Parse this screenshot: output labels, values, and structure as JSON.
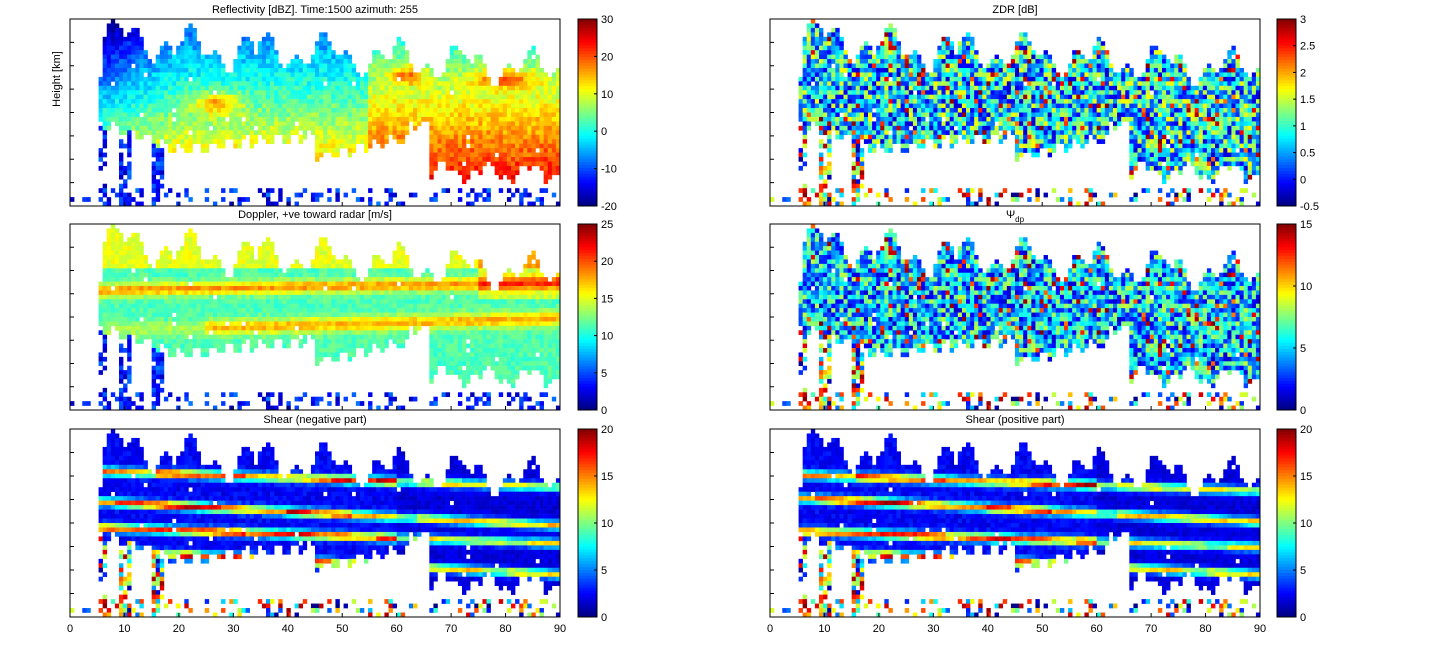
{
  "chart_data": [
    {
      "type": "heatmap",
      "title": "Reflectivity [dBZ]. Time:1500 azimuth: 255",
      "ylabel": "Height [km]",
      "xlim": [
        0,
        90
      ],
      "x_ticks": [],
      "colorbar": {
        "range": [
          -20,
          30
        ],
        "ticks": [
          "-20",
          "-10",
          "0",
          "10",
          "20",
          "30"
        ]
      },
      "field": {
        "kind": "refl",
        "hotspots": [
          [
            27,
            0.45,
            4,
            0.06,
            28
          ],
          [
            62,
            0.3,
            3,
            0.05,
            20
          ],
          [
            80,
            0.32,
            6,
            0.05,
            18
          ]
        ]
      }
    },
    {
      "type": "heatmap",
      "title": "ZDR [dB]",
      "xlim": [
        0,
        90
      ],
      "x_ticks": [],
      "colorbar": {
        "range": [
          -0.5,
          3
        ],
        "ticks": [
          "-0.5",
          "0",
          "0.5",
          "1",
          "1.5",
          "2",
          "2.5",
          "3"
        ]
      },
      "field": {
        "kind": "noise",
        "base": 0.35,
        "spread": 0.28
      }
    },
    {
      "type": "heatmap",
      "title": "Doppler, +ve toward radar [m/s]",
      "xlim": [
        0,
        90
      ],
      "x_ticks": [],
      "colorbar": {
        "range": [
          0,
          25
        ],
        "ticks": [
          "0",
          "5",
          "10",
          "15",
          "20",
          "25"
        ]
      },
      "field": {
        "kind": "doppler"
      }
    },
    {
      "type": "heatmap",
      "title": "Ψdp",
      "title_main": "Ψ",
      "title_sub": "dp",
      "xlim": [
        0,
        90
      ],
      "x_ticks": [],
      "colorbar": {
        "range": [
          0,
          15
        ],
        "ticks": [
          "0",
          "5",
          "10",
          "15"
        ]
      },
      "field": {
        "kind": "noise",
        "base": 0.32,
        "spread": 0.25
      }
    },
    {
      "type": "heatmap",
      "title": "Shear (negative part)",
      "xlim": [
        0,
        90
      ],
      "x_ticks": [
        "0",
        "10",
        "20",
        "30",
        "40",
        "50",
        "60",
        "70",
        "80",
        "90"
      ],
      "colorbar": {
        "range": [
          0,
          20
        ],
        "ticks": [
          "0",
          "5",
          "10",
          "15",
          "20"
        ]
      },
      "field": {
        "kind": "shear",
        "variant": 0
      }
    },
    {
      "type": "heatmap",
      "title": "Shear (positive part)",
      "xlim": [
        0,
        90
      ],
      "x_ticks": [
        "0",
        "10",
        "20",
        "30",
        "40",
        "50",
        "60",
        "70",
        "80",
        "90"
      ],
      "colorbar": {
        "range": [
          0,
          20
        ],
        "ticks": [
          "0",
          "5",
          "10",
          "15",
          "20"
        ]
      },
      "field": {
        "kind": "shear",
        "variant": 1
      }
    }
  ]
}
